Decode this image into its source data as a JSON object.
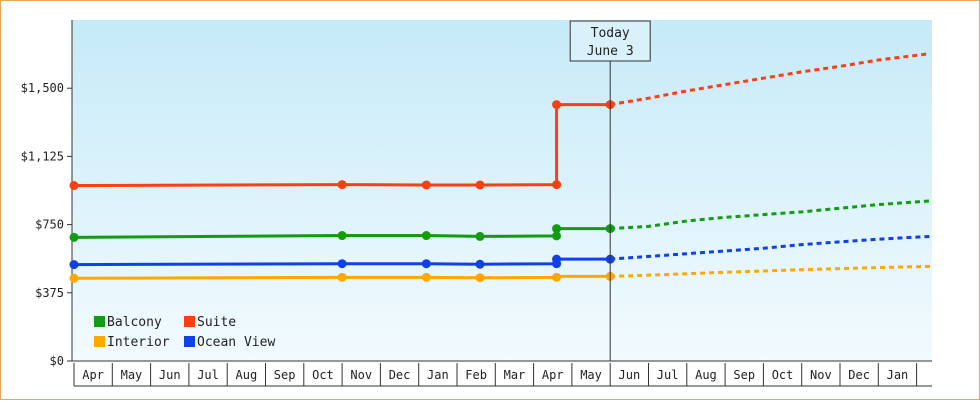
{
  "chart_data": {
    "type": "line",
    "title": "",
    "xlabel": "",
    "ylabel": "",
    "ylim": [
      0,
      1875
    ],
    "y_ticks": [
      {
        "value": 0,
        "label": "$0"
      },
      {
        "value": 375,
        "label": "$375"
      },
      {
        "value": 750,
        "label": "$750"
      },
      {
        "value": 1125,
        "label": "$1,125"
      },
      {
        "value": 1500,
        "label": "$1,500"
      }
    ],
    "x_months": [
      "Apr",
      "May",
      "Jun",
      "Jul",
      "Aug",
      "Sep",
      "Oct",
      "Nov",
      "Dec",
      "Jan",
      "Feb",
      "Mar",
      "Apr",
      "May",
      "Jun",
      "Jul",
      "Aug",
      "Sep",
      "Oct",
      "Nov",
      "Dec",
      "Jan"
    ],
    "today_label": [
      "Today",
      "June 3"
    ],
    "today_month_index": 14.0,
    "series": [
      {
        "name": "Balcony",
        "color": "#129c12",
        "points": [
          [
            0,
            680
          ],
          [
            7,
            690
          ],
          [
            9.2,
            690
          ],
          [
            10.6,
            685
          ],
          [
            12.6,
            688
          ],
          [
            12.6,
            728
          ],
          [
            14,
            728
          ]
        ],
        "markers": [
          [
            0,
            680
          ],
          [
            7,
            690
          ],
          [
            9.2,
            690
          ],
          [
            10.6,
            685
          ],
          [
            12.6,
            688
          ],
          [
            12.6,
            728
          ],
          [
            14,
            728
          ]
        ],
        "forecast": [
          [
            14,
            728
          ],
          [
            15,
            740
          ],
          [
            16,
            770
          ],
          [
            17,
            790
          ],
          [
            18,
            805
          ],
          [
            19,
            820
          ],
          [
            20,
            840
          ],
          [
            21,
            860
          ],
          [
            22.35,
            880
          ]
        ]
      },
      {
        "name": "Suite",
        "color": "#ff3d12",
        "points": [
          [
            0,
            965
          ],
          [
            7,
            970
          ],
          [
            9.2,
            968
          ],
          [
            10.6,
            968
          ],
          [
            12.6,
            970
          ],
          [
            12.6,
            1410
          ],
          [
            14,
            1410
          ]
        ],
        "markers": [
          [
            0,
            965
          ],
          [
            7,
            970
          ],
          [
            9.2,
            968
          ],
          [
            10.6,
            968
          ],
          [
            12.6,
            970
          ],
          [
            12.6,
            1410
          ],
          [
            14,
            1410
          ]
        ],
        "forecast": [
          [
            14,
            1410
          ],
          [
            15,
            1445
          ],
          [
            16,
            1485
          ],
          [
            17,
            1520
          ],
          [
            18,
            1555
          ],
          [
            19,
            1590
          ],
          [
            20,
            1620
          ],
          [
            21,
            1655
          ],
          [
            22.35,
            1690
          ]
        ]
      },
      {
        "name": "Ocean View",
        "color": "#1040e8",
        "points": [
          [
            0,
            530
          ],
          [
            7,
            535
          ],
          [
            9.2,
            535
          ],
          [
            10.6,
            532
          ],
          [
            12.6,
            535
          ],
          [
            12.6,
            560
          ],
          [
            14,
            560
          ]
        ],
        "markers": [
          [
            0,
            530
          ],
          [
            7,
            535
          ],
          [
            9.2,
            535
          ],
          [
            10.6,
            532
          ],
          [
            12.6,
            535
          ],
          [
            12.6,
            560
          ],
          [
            14,
            560
          ]
        ],
        "forecast": [
          [
            14,
            560
          ],
          [
            15,
            575
          ],
          [
            16,
            590
          ],
          [
            17,
            605
          ],
          [
            18,
            620
          ],
          [
            19,
            640
          ],
          [
            20,
            655
          ],
          [
            21,
            670
          ],
          [
            22.35,
            685
          ]
        ]
      },
      {
        "name": "Interior",
        "color": "#ffa800",
        "points": [
          [
            0,
            455
          ],
          [
            7,
            460
          ],
          [
            9.2,
            460
          ],
          [
            10.6,
            458
          ],
          [
            12.6,
            460
          ],
          [
            12.6,
            465
          ],
          [
            14,
            465
          ]
        ],
        "markers": [
          [
            0,
            455
          ],
          [
            7,
            460
          ],
          [
            9.2,
            460
          ],
          [
            10.6,
            458
          ],
          [
            12.6,
            460
          ],
          [
            14,
            465
          ]
        ],
        "forecast": [
          [
            14,
            465
          ],
          [
            15,
            472
          ],
          [
            16,
            480
          ],
          [
            17,
            488
          ],
          [
            18,
            495
          ],
          [
            19,
            502
          ],
          [
            20,
            508
          ],
          [
            21,
            514
          ],
          [
            22.35,
            520
          ]
        ]
      }
    ],
    "legend": {
      "placement": "bottom-left",
      "rows": [
        [
          "Balcony",
          "Suite"
        ],
        [
          "Interior",
          "Ocean View"
        ]
      ]
    },
    "grid": false
  }
}
